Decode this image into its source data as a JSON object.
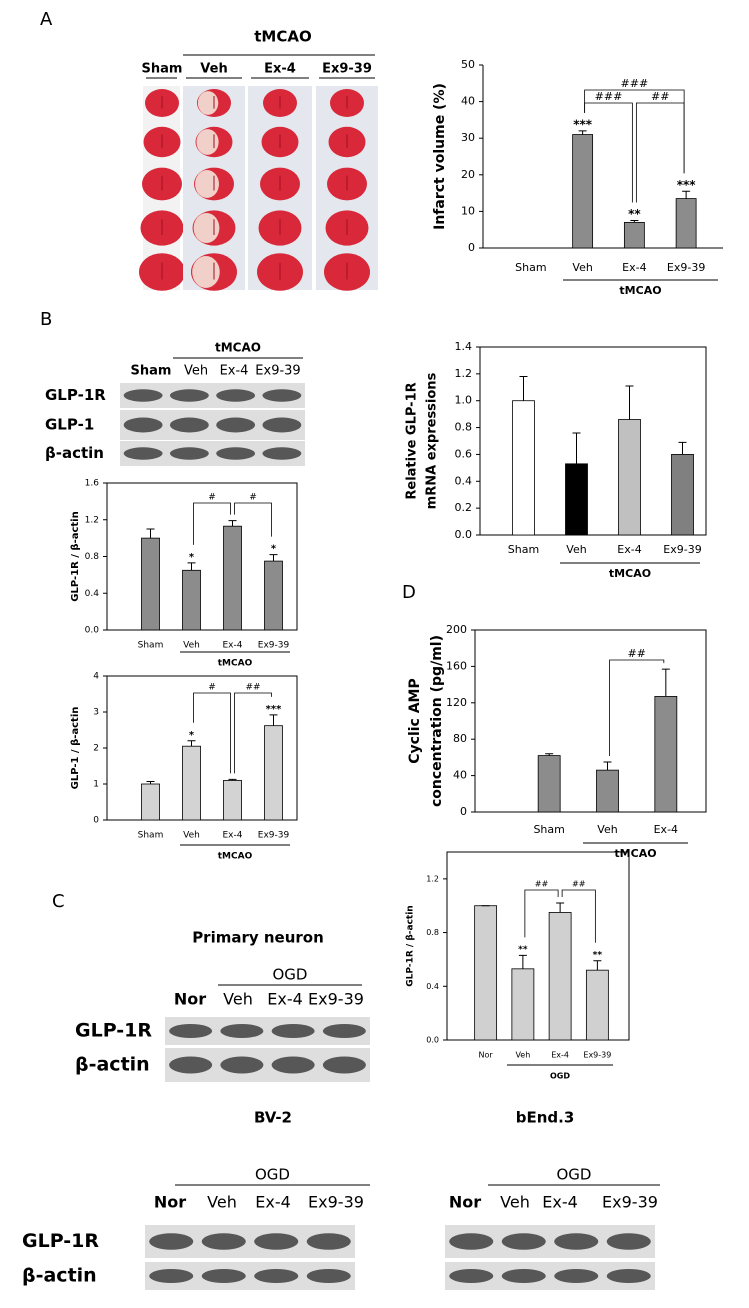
{
  "panel_labels": [
    "A",
    "B",
    "C",
    "D"
  ],
  "infarct_images": {
    "group_label": "tMCAO",
    "columns": [
      "Sham",
      "Veh",
      "Ex-4",
      "Ex9-39"
    ]
  },
  "blots": [
    {
      "group_label": "tMCAO",
      "lanes": [
        "Sham",
        "Veh",
        "Ex-4",
        "Ex9-39"
      ],
      "rows": [
        "GLP-1R",
        "GLP-1",
        "β-actin"
      ]
    },
    {
      "title": "Primary neuron",
      "group_label": "OGD",
      "lanes": [
        "Nor",
        "Veh",
        "Ex-4",
        "Ex9-39"
      ],
      "rows": [
        "GLP-1R",
        "β-actin"
      ]
    },
    {
      "title": "BV-2",
      "group_label": "OGD",
      "lanes": [
        "Nor",
        "Veh",
        "Ex-4",
        "Ex9-39"
      ],
      "rows": [
        "GLP-1R",
        "β-actin"
      ]
    },
    {
      "title": "bEnd.3",
      "group_label": "OGD",
      "lanes": [
        "Nor",
        "Veh",
        "Ex-4",
        "Ex9-39"
      ],
      "rows": [
        "GLP-1R",
        "β-actin"
      ]
    }
  ],
  "chart_data": [
    {
      "type": "bar",
      "y_label": "Infarct volume (%)",
      "categories": [
        "Sham",
        "Veh",
        "Ex-4",
        "Ex9-39"
      ],
      "values": [
        0,
        31,
        7,
        13.5
      ],
      "errors": [
        0,
        1,
        0.5,
        2
      ],
      "color": "#8c8c8c",
      "box": false,
      "significance": [
        null,
        "***",
        "**",
        "***"
      ],
      "comparisons": [
        {
          "from": "Veh",
          "to": "Ex-4",
          "label": "###"
        },
        {
          "from": "Ex-4",
          "to": "Ex9-39",
          "label": "##"
        },
        {
          "from": "Veh",
          "to": "Ex9-39",
          "label": "###"
        }
      ],
      "group_label": "tMCAO",
      "ylim": [
        0,
        50
      ],
      "yticks": [
        0,
        10,
        20,
        30,
        40,
        50
      ]
    },
    {
      "type": "bar",
      "y_label": "GLP-1R / β-actin",
      "categories": [
        "Sham",
        "Veh",
        "Ex-4",
        "Ex9-39"
      ],
      "values": [
        1.0,
        0.65,
        1.13,
        0.75
      ],
      "errors": [
        0.1,
        0.08,
        0.06,
        0.07
      ],
      "color": "#8c8c8c",
      "box": true,
      "significance": [
        null,
        "*",
        null,
        "*"
      ],
      "comparisons": [
        {
          "from": "Veh",
          "to": "Ex-4",
          "label": "#"
        },
        {
          "from": "Ex-4",
          "to": "Ex9-39",
          "label": "#"
        }
      ],
      "group_label": "tMCAO",
      "ylim": [
        0,
        1.6
      ],
      "yticks": [
        {
          "value": 0,
          "label": "0.0"
        },
        0.4,
        0.8,
        1.2,
        1.6
      ]
    },
    {
      "type": "bar",
      "y_label": "GLP-1 / β-actin",
      "categories": [
        "Sham",
        "Veh",
        "Ex-4",
        "Ex9-39"
      ],
      "values": [
        1.0,
        2.05,
        1.1,
        2.62
      ],
      "errors": [
        0.07,
        0.15,
        0.03,
        0.3
      ],
      "color": "#d3d3d3",
      "box": true,
      "significance": [
        null,
        "*",
        null,
        "***"
      ],
      "comparisons": [
        {
          "from": "Veh",
          "to": "Ex-4",
          "label": "#"
        },
        {
          "from": "Ex-4",
          "to": "Ex9-39",
          "label": "##"
        }
      ],
      "group_label": "tMCAO",
      "ylim": [
        0,
        4
      ],
      "yticks": [
        0,
        1,
        2,
        3,
        4
      ]
    },
    {
      "type": "bar",
      "y_label": [
        "Relative GLP-1R",
        "mRNA expressions"
      ],
      "categories": [
        "Sham",
        "Veh",
        "Ex-4",
        "Ex9-39"
      ],
      "values": [
        1.0,
        0.53,
        0.86,
        0.6
      ],
      "errors": [
        0.18,
        0.23,
        0.25,
        0.09
      ],
      "colors": [
        "#ffffff",
        "#000000",
        "#c0c0c0",
        "#808080"
      ],
      "box": true,
      "group_label": "tMCAO",
      "ylim": [
        0,
        1.4
      ],
      "yticks": [
        {
          "value": 0,
          "label": "0.0"
        },
        0.2,
        0.4,
        0.6,
        0.8,
        {
          "value": 1,
          "label": "1.0"
        },
        1.2,
        1.4
      ]
    },
    {
      "type": "bar",
      "y_label": [
        "Cyclic AMP",
        "concentration (pg/ml)"
      ],
      "categories": [
        "Sham",
        "Veh",
        "Ex-4"
      ],
      "values": [
        62,
        46,
        127
      ],
      "errors": [
        2,
        9,
        30
      ],
      "color": "#8c8c8c",
      "box": true,
      "comparisons": [
        {
          "from": "Veh",
          "to": "Ex-4",
          "label": "##"
        }
      ],
      "group_label": "tMCAO",
      "ylim": [
        0,
        200
      ],
      "yticks": [
        0,
        40,
        80,
        120,
        160,
        200
      ]
    },
    {
      "type": "bar",
      "y_label": "GLP-1R / β-actin",
      "categories": [
        "Nor",
        "Veh",
        "Ex-4",
        "Ex9-39"
      ],
      "values": [
        1.0,
        0.53,
        0.95,
        0.52
      ],
      "errors": [
        0,
        0.1,
        0.07,
        0.07
      ],
      "color": "#d0d0d0",
      "box": true,
      "significance": [
        null,
        "**",
        null,
        "**"
      ],
      "comparisons": [
        {
          "from": "Veh",
          "to": "Ex-4",
          "label": "##"
        },
        {
          "from": "Ex-4",
          "to": "Ex9-39",
          "label": "##"
        }
      ],
      "group_label": "OGD",
      "ylim": [
        0,
        1.4
      ],
      "yticks": [
        {
          "value": 0,
          "label": "0.0"
        },
        0.4,
        0.8,
        1.2
      ]
    }
  ]
}
